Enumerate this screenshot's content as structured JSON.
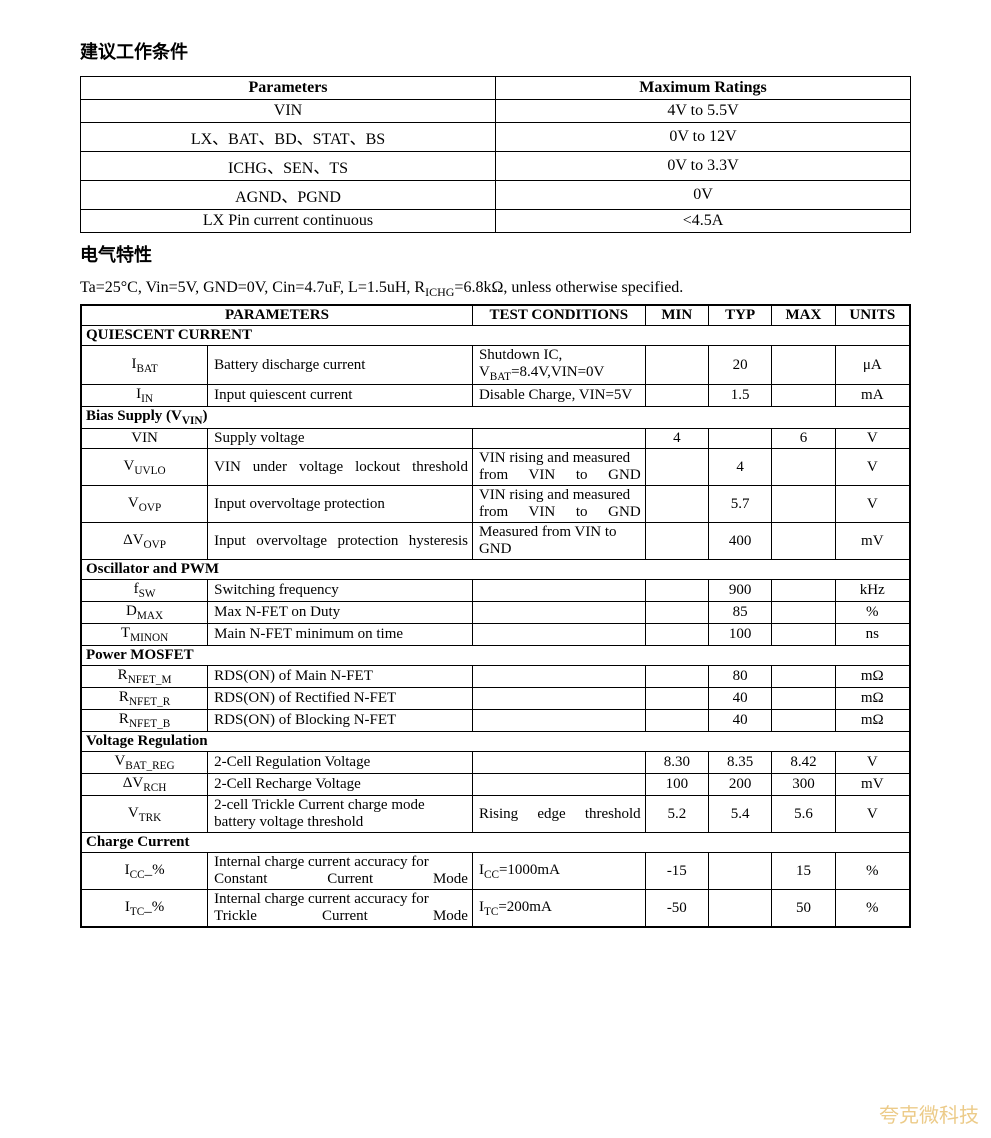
{
  "section1_title": "建议工作条件",
  "table1": {
    "headers": [
      "Parameters",
      "Maximum Ratings"
    ],
    "rows": [
      [
        "VIN",
        "4V to 5.5V"
      ],
      [
        "LX、BAT、BD、STAT、BS",
        "0V to 12V"
      ],
      [
        "ICHG、SEN、TS",
        "0V to 3.3V"
      ],
      [
        "AGND、PGND",
        "0V"
      ],
      [
        "LX Pin current continuous",
        "<4.5A"
      ]
    ]
  },
  "section2_title": "电气特性",
  "conditions_prefix": "Ta=25°C, Vin=5V, GND=0V, Cin=4.7uF, L=1.5uH, R",
  "conditions_sub": "ICHG",
  "conditions_suffix": "=6.8kΩ, unless otherwise specified.",
  "table2": {
    "headers": [
      "PARAMETERS",
      "TEST CONDITIONS",
      "MIN",
      "TYP",
      "MAX",
      "UNITS"
    ],
    "groups": [
      {
        "title": "QUIESCENT CURRENT",
        "rows": [
          {
            "p": "I",
            "psub": "BAT",
            "desc": "Battery discharge current",
            "cond_html": "Shutdown IC, V<span class='sub'>BAT</span>=8.4V,VIN=0V",
            "min": "",
            "typ": "20",
            "max": "",
            "unit": "μA"
          },
          {
            "p": "I",
            "psub": "IN",
            "desc": "Input quiescent current",
            "cond": "Disable Charge, VIN=5V",
            "min": "",
            "typ": "1.5",
            "max": "",
            "unit": "mA"
          }
        ]
      },
      {
        "title_html": "Bias Supply (V<span class='sub'>VIN</span>)",
        "rows": [
          {
            "p": "VIN",
            "desc": "Supply voltage",
            "cond": "",
            "min": "4",
            "typ": "",
            "max": "6",
            "unit": "V"
          },
          {
            "p": "V",
            "psub": "UVLO",
            "desc": "VIN under voltage lockout threshold",
            "desc_justify": true,
            "cond": "VIN rising and measured from VIN to GND",
            "cond_justify": true,
            "min": "",
            "typ": "4",
            "max": "",
            "unit": "V"
          },
          {
            "p": "V",
            "psub": "OVP",
            "desc": "Input overvoltage protection",
            "cond": "VIN rising and measured from VIN to GND",
            "cond_justify": true,
            "min": "",
            "typ": "5.7",
            "max": "",
            "unit": "V"
          },
          {
            "p": "ΔV",
            "psub": "OVP",
            "desc": "Input overvoltage protection hysteresis",
            "desc_justify": true,
            "cond": "Measured from VIN to GND",
            "cond_justify": true,
            "min": "",
            "typ": "400",
            "max": "",
            "unit": "mV"
          }
        ]
      },
      {
        "title": "Oscillator and PWM",
        "rows": [
          {
            "p": "f",
            "psub": "SW",
            "desc": "Switching frequency",
            "cond": "",
            "min": "",
            "typ": "900",
            "max": "",
            "unit": "kHz"
          },
          {
            "p": "D",
            "psub": "MAX",
            "desc": "Max N-FET on Duty",
            "cond": "",
            "min": "",
            "typ": "85",
            "max": "",
            "unit": "%"
          },
          {
            "p": "T",
            "psub": "MINON",
            "desc": "Main N-FET minimum on time",
            "cond": "",
            "min": "",
            "typ": "100",
            "max": "",
            "unit": "ns"
          }
        ]
      },
      {
        "title": "Power MOSFET",
        "rows": [
          {
            "p": "R",
            "psub": "NFET_M",
            "desc": "RDS(ON)   of   Main N-FET",
            "cond": "",
            "min": "",
            "typ": "80",
            "max": "",
            "unit": "mΩ"
          },
          {
            "p": "R",
            "psub": "NFET_R",
            "desc": "RDS(ON)   of   Rectified N-FET",
            "cond": "",
            "min": "",
            "typ": "40",
            "max": "",
            "unit": "mΩ"
          },
          {
            "p": "R",
            "psub": "NFET_B",
            "desc": "RDS(ON)   of   Blocking N-FET",
            "cond": "",
            "min": "",
            "typ": "40",
            "max": "",
            "unit": "mΩ"
          }
        ]
      },
      {
        "title": "Voltage Regulation",
        "rows": [
          {
            "p": "V",
            "psub": "BAT_REG",
            "desc": "2-Cell Regulation Voltage",
            "cond": "",
            "min": "8.30",
            "typ": "8.35",
            "max": "8.42",
            "unit": "V"
          },
          {
            "p": "ΔV",
            "psub": "RCH",
            "desc": "2-Cell Recharge Voltage",
            "cond": "",
            "min": "100",
            "typ": "200",
            "max": "300",
            "unit": "mV"
          },
          {
            "p": "V",
            "psub": "TRK",
            "desc": "2-cell Trickle Current charge mode battery voltage threshold",
            "cond": "Rising edge threshold",
            "cond_justify": true,
            "min": "5.2",
            "typ": "5.4",
            "max": "5.6",
            "unit": "V"
          }
        ]
      },
      {
        "title": "Charge Current",
        "rows": [
          {
            "p": "I",
            "psub": "CC",
            "psuffix": "_%",
            "desc": "Internal charge current accuracy for Constant Current Mode",
            "desc_justify": true,
            "cond_html": "I<span class='sub'>CC</span>=1000mA",
            "min": "-15",
            "typ": "",
            "max": "15",
            "unit": "%"
          },
          {
            "p": "I",
            "psub": "TC",
            "psuffix": "_%",
            "desc": "Internal charge current accuracy for Trickle Current Mode",
            "desc_justify": true,
            "cond_html": "I<span class='sub'>TC</span>=200mA",
            "min": "-50",
            "typ": "",
            "max": "50",
            "unit": "%"
          }
        ]
      }
    ]
  },
  "watermark": "夸克微科技"
}
